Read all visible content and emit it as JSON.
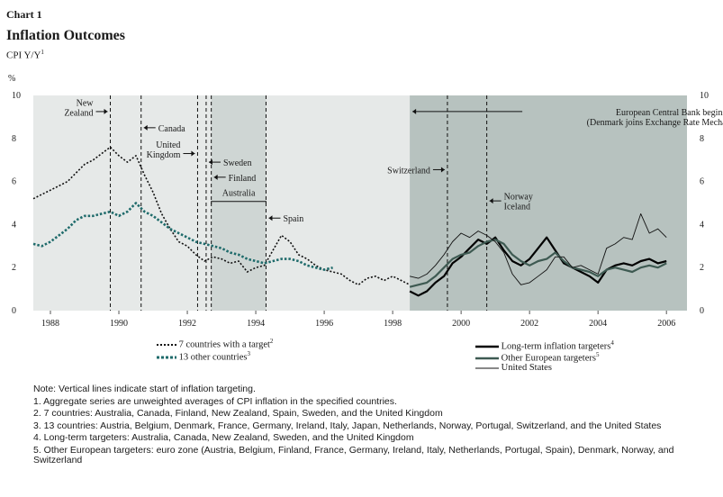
{
  "header": {
    "chart_label": "Chart 1",
    "title": "Inflation Outcomes",
    "subtitle": "CPI Y/Y",
    "subtitle_sup": "1"
  },
  "colors": {
    "plot_bg": "#e6e9e8",
    "shade_light": "#cfd6d4",
    "shade_dark": "#b7c2bf",
    "target7": "#111111",
    "other13": "#1f6b6b",
    "longterm": "#000000",
    "european": "#3e5a52",
    "us": "#111111"
  },
  "chart_data": {
    "type": "line",
    "y_unit_label": "%",
    "ylim": [
      0,
      10
    ],
    "y_ticks": [
      "0",
      "2",
      "4",
      "6",
      "8",
      "10"
    ],
    "xlim": [
      1987.5,
      2006.6
    ],
    "x_ticks": [
      "1988",
      "1990",
      "1992",
      "1994",
      "1996",
      "1998",
      "2000",
      "2002",
      "2004",
      "2006"
    ],
    "shaded_regions": [
      {
        "from": 1992.7,
        "to": 1994.3,
        "tone": "light"
      },
      {
        "from": 1998.5,
        "to": 2006.6,
        "tone": "dark"
      }
    ],
    "targeting_lines": [
      1989.75,
      1990.65,
      1992.3,
      1992.55,
      1992.7,
      1994.3,
      1999.6,
      2000.75
    ],
    "annotations": [
      {
        "text": "New Zealand",
        "lines": [
          "New",
          "Zealand"
        ],
        "x": 1989.75,
        "y": 9.25
      },
      {
        "text": "Canada",
        "lines": [
          "Canada"
        ],
        "x": 1990.65,
        "y": 8.5
      },
      {
        "text": "United Kingdom",
        "lines": [
          "United",
          "Kingdom"
        ],
        "x": 1992.3,
        "y": 7.3
      },
      {
        "text": "Sweden",
        "lines": [
          "Sweden"
        ],
        "x": 1992.55,
        "y": 6.9
      },
      {
        "text": "Finland",
        "lines": [
          "Finland"
        ],
        "x": 1992.7,
        "y": 6.2
      },
      {
        "text": "Australia",
        "lines": [
          "Australia"
        ],
        "x": 1993.5,
        "y": 5.2
      },
      {
        "text": "Spain",
        "lines": [
          "Spain"
        ],
        "x": 1994.3,
        "y": 4.3
      },
      {
        "text": "Switzerland",
        "lines": [
          "Switzerland"
        ],
        "x": 1999.6,
        "y": 6.55
      },
      {
        "text": "Norway Iceland",
        "lines": [
          "Norway",
          "Iceland"
        ],
        "x": 2000.75,
        "y": 5.1
      },
      {
        "text": "European Central Bank begins (Denmark joins Exchange Rate Mechanism II)",
        "lines": [
          "European Central Bank begins",
          "(Denmark joins Exchange Rate Mechanism II)"
        ],
        "x": 1998.5,
        "y": 9.25
      }
    ],
    "series": [
      {
        "name": "7 countries with a target",
        "legend_sup": "2",
        "style": "dotted-black",
        "x": [
          1987.5,
          1987.75,
          1988.0,
          1988.25,
          1988.5,
          1988.75,
          1989.0,
          1989.25,
          1989.5,
          1989.75,
          1990.0,
          1990.25,
          1990.5,
          1990.75,
          1991.0,
          1991.25,
          1991.5,
          1991.75,
          1992.0,
          1992.25,
          1992.5,
          1992.75,
          1993.0,
          1993.25,
          1993.5,
          1993.75,
          1994.0,
          1994.25,
          1994.5,
          1994.75,
          1995.0,
          1995.25,
          1995.5,
          1995.75,
          1996.0,
          1996.25,
          1996.5,
          1996.75,
          1997.0,
          1997.25,
          1997.5,
          1997.75,
          1998.0,
          1998.25,
          1998.5
        ],
        "y": [
          5.2,
          5.4,
          5.6,
          5.8,
          6.0,
          6.4,
          6.8,
          7.0,
          7.3,
          7.6,
          7.2,
          6.9,
          7.2,
          6.3,
          5.5,
          4.5,
          3.8,
          3.2,
          3.0,
          2.6,
          2.3,
          2.5,
          2.4,
          2.2,
          2.3,
          1.8,
          2.0,
          2.1,
          2.8,
          3.5,
          3.2,
          2.6,
          2.4,
          2.1,
          1.9,
          1.8,
          1.7,
          1.4,
          1.2,
          1.5,
          1.6,
          1.4,
          1.6,
          1.4,
          1.2
        ]
      },
      {
        "name": "13 other countries",
        "legend_sup": "3",
        "style": "dotted-teal",
        "x": [
          1987.5,
          1987.75,
          1988.0,
          1988.25,
          1988.5,
          1988.75,
          1989.0,
          1989.25,
          1989.5,
          1989.75,
          1990.0,
          1990.25,
          1990.5,
          1990.75,
          1991.0,
          1991.25,
          1991.5,
          1991.75,
          1992.0,
          1992.25,
          1992.5,
          1992.75,
          1993.0,
          1993.25,
          1993.5,
          1993.75,
          1994.0,
          1994.25,
          1994.5,
          1994.75,
          1995.0,
          1995.25,
          1995.5,
          1995.75,
          1996.0,
          1996.25
        ],
        "y": [
          3.1,
          3.0,
          3.2,
          3.5,
          3.8,
          4.2,
          4.4,
          4.4,
          4.5,
          4.6,
          4.4,
          4.6,
          5.0,
          4.6,
          4.4,
          4.1,
          3.8,
          3.6,
          3.4,
          3.2,
          3.1,
          3.0,
          2.9,
          2.7,
          2.6,
          2.4,
          2.3,
          2.2,
          2.3,
          2.4,
          2.4,
          2.3,
          2.1,
          2.0,
          1.9,
          2.0
        ]
      },
      {
        "name": "Long-term inflation targeters",
        "legend_sup": "4",
        "style": "solid-thick-black",
        "x": [
          1998.5,
          1998.75,
          1999.0,
          1999.25,
          1999.5,
          1999.75,
          2000.0,
          2000.25,
          2000.5,
          2000.75,
          2001.0,
          2001.25,
          2001.5,
          2001.75,
          2002.0,
          2002.25,
          2002.5,
          2002.75,
          2003.0,
          2003.25,
          2003.5,
          2003.75,
          2004.0,
          2004.25,
          2004.5,
          2004.75,
          2005.0,
          2005.25,
          2005.5,
          2005.75,
          2006.0
        ],
        "y": [
          0.9,
          0.7,
          0.9,
          1.3,
          1.6,
          2.2,
          2.5,
          2.9,
          3.3,
          3.1,
          3.4,
          2.8,
          2.3,
          2.1,
          2.4,
          2.9,
          3.4,
          2.8,
          2.2,
          2.0,
          1.8,
          1.6,
          1.3,
          1.9,
          2.1,
          2.2,
          2.1,
          2.3,
          2.4,
          2.2,
          2.3
        ]
      },
      {
        "name": "Other European targeters",
        "legend_sup": "5",
        "style": "solid-thick-green",
        "x": [
          1998.5,
          1998.75,
          1999.0,
          1999.25,
          1999.5,
          1999.75,
          2000.0,
          2000.25,
          2000.5,
          2000.75,
          2001.0,
          2001.25,
          2001.5,
          2001.75,
          2002.0,
          2002.25,
          2002.5,
          2002.75,
          2003.0,
          2003.25,
          2003.5,
          2003.75,
          2004.0,
          2004.25,
          2004.5,
          2004.75,
          2005.0,
          2005.25,
          2005.5,
          2005.75,
          2006.0
        ],
        "y": [
          1.1,
          1.2,
          1.3,
          1.6,
          2.0,
          2.4,
          2.6,
          2.7,
          3.0,
          3.2,
          3.3,
          3.1,
          2.6,
          2.3,
          2.1,
          2.3,
          2.4,
          2.7,
          2.3,
          2.0,
          1.9,
          1.8,
          1.6,
          1.9,
          2.0,
          1.9,
          1.8,
          2.0,
          2.1,
          2.0,
          2.2
        ]
      },
      {
        "name": "United States",
        "legend_sup": "",
        "style": "solid-thin-black",
        "x": [
          1998.5,
          1998.75,
          1999.0,
          1999.25,
          1999.5,
          1999.75,
          2000.0,
          2000.25,
          2000.5,
          2000.75,
          2001.0,
          2001.25,
          2001.5,
          2001.75,
          2002.0,
          2002.25,
          2002.5,
          2002.75,
          2003.0,
          2003.25,
          2003.5,
          2003.75,
          2004.0,
          2004.25,
          2004.5,
          2004.75,
          2005.0,
          2005.25,
          2005.5,
          2005.75,
          2006.0
        ],
        "y": [
          1.6,
          1.5,
          1.7,
          2.1,
          2.6,
          3.2,
          3.6,
          3.4,
          3.7,
          3.5,
          3.2,
          2.7,
          1.7,
          1.2,
          1.3,
          1.6,
          1.9,
          2.5,
          2.5,
          2.0,
          2.1,
          1.9,
          1.7,
          2.9,
          3.1,
          3.4,
          3.3,
          4.5,
          3.6,
          3.8,
          3.4
        ]
      }
    ]
  },
  "notes": {
    "vertical": "Note: Vertical lines indicate start of inflation targeting.",
    "n1": "1.  Aggregate series are unweighted averages of CPI inflation in the specified countries.",
    "n2": "2.  7 countries: Australia, Canada, Finland, New Zealand, Spain, Sweden, and the United Kingdom",
    "n3": "3.  13 countries: Austria, Belgium, Denmark, France, Germany, Ireland, Italy, Japan, Netherlands, Norway, Portugal, Switzerland, and the United States",
    "n4": "4.  Long-term targeters: Australia, Canada, New Zealand, Sweden, and the United Kingdom",
    "n5": "5.  Other European targeters: euro zone (Austria, Belgium, Finland, France, Germany, Ireland, Italy, Netherlands, Portugal, Spain), Denmark, Norway, and Switzerland"
  }
}
